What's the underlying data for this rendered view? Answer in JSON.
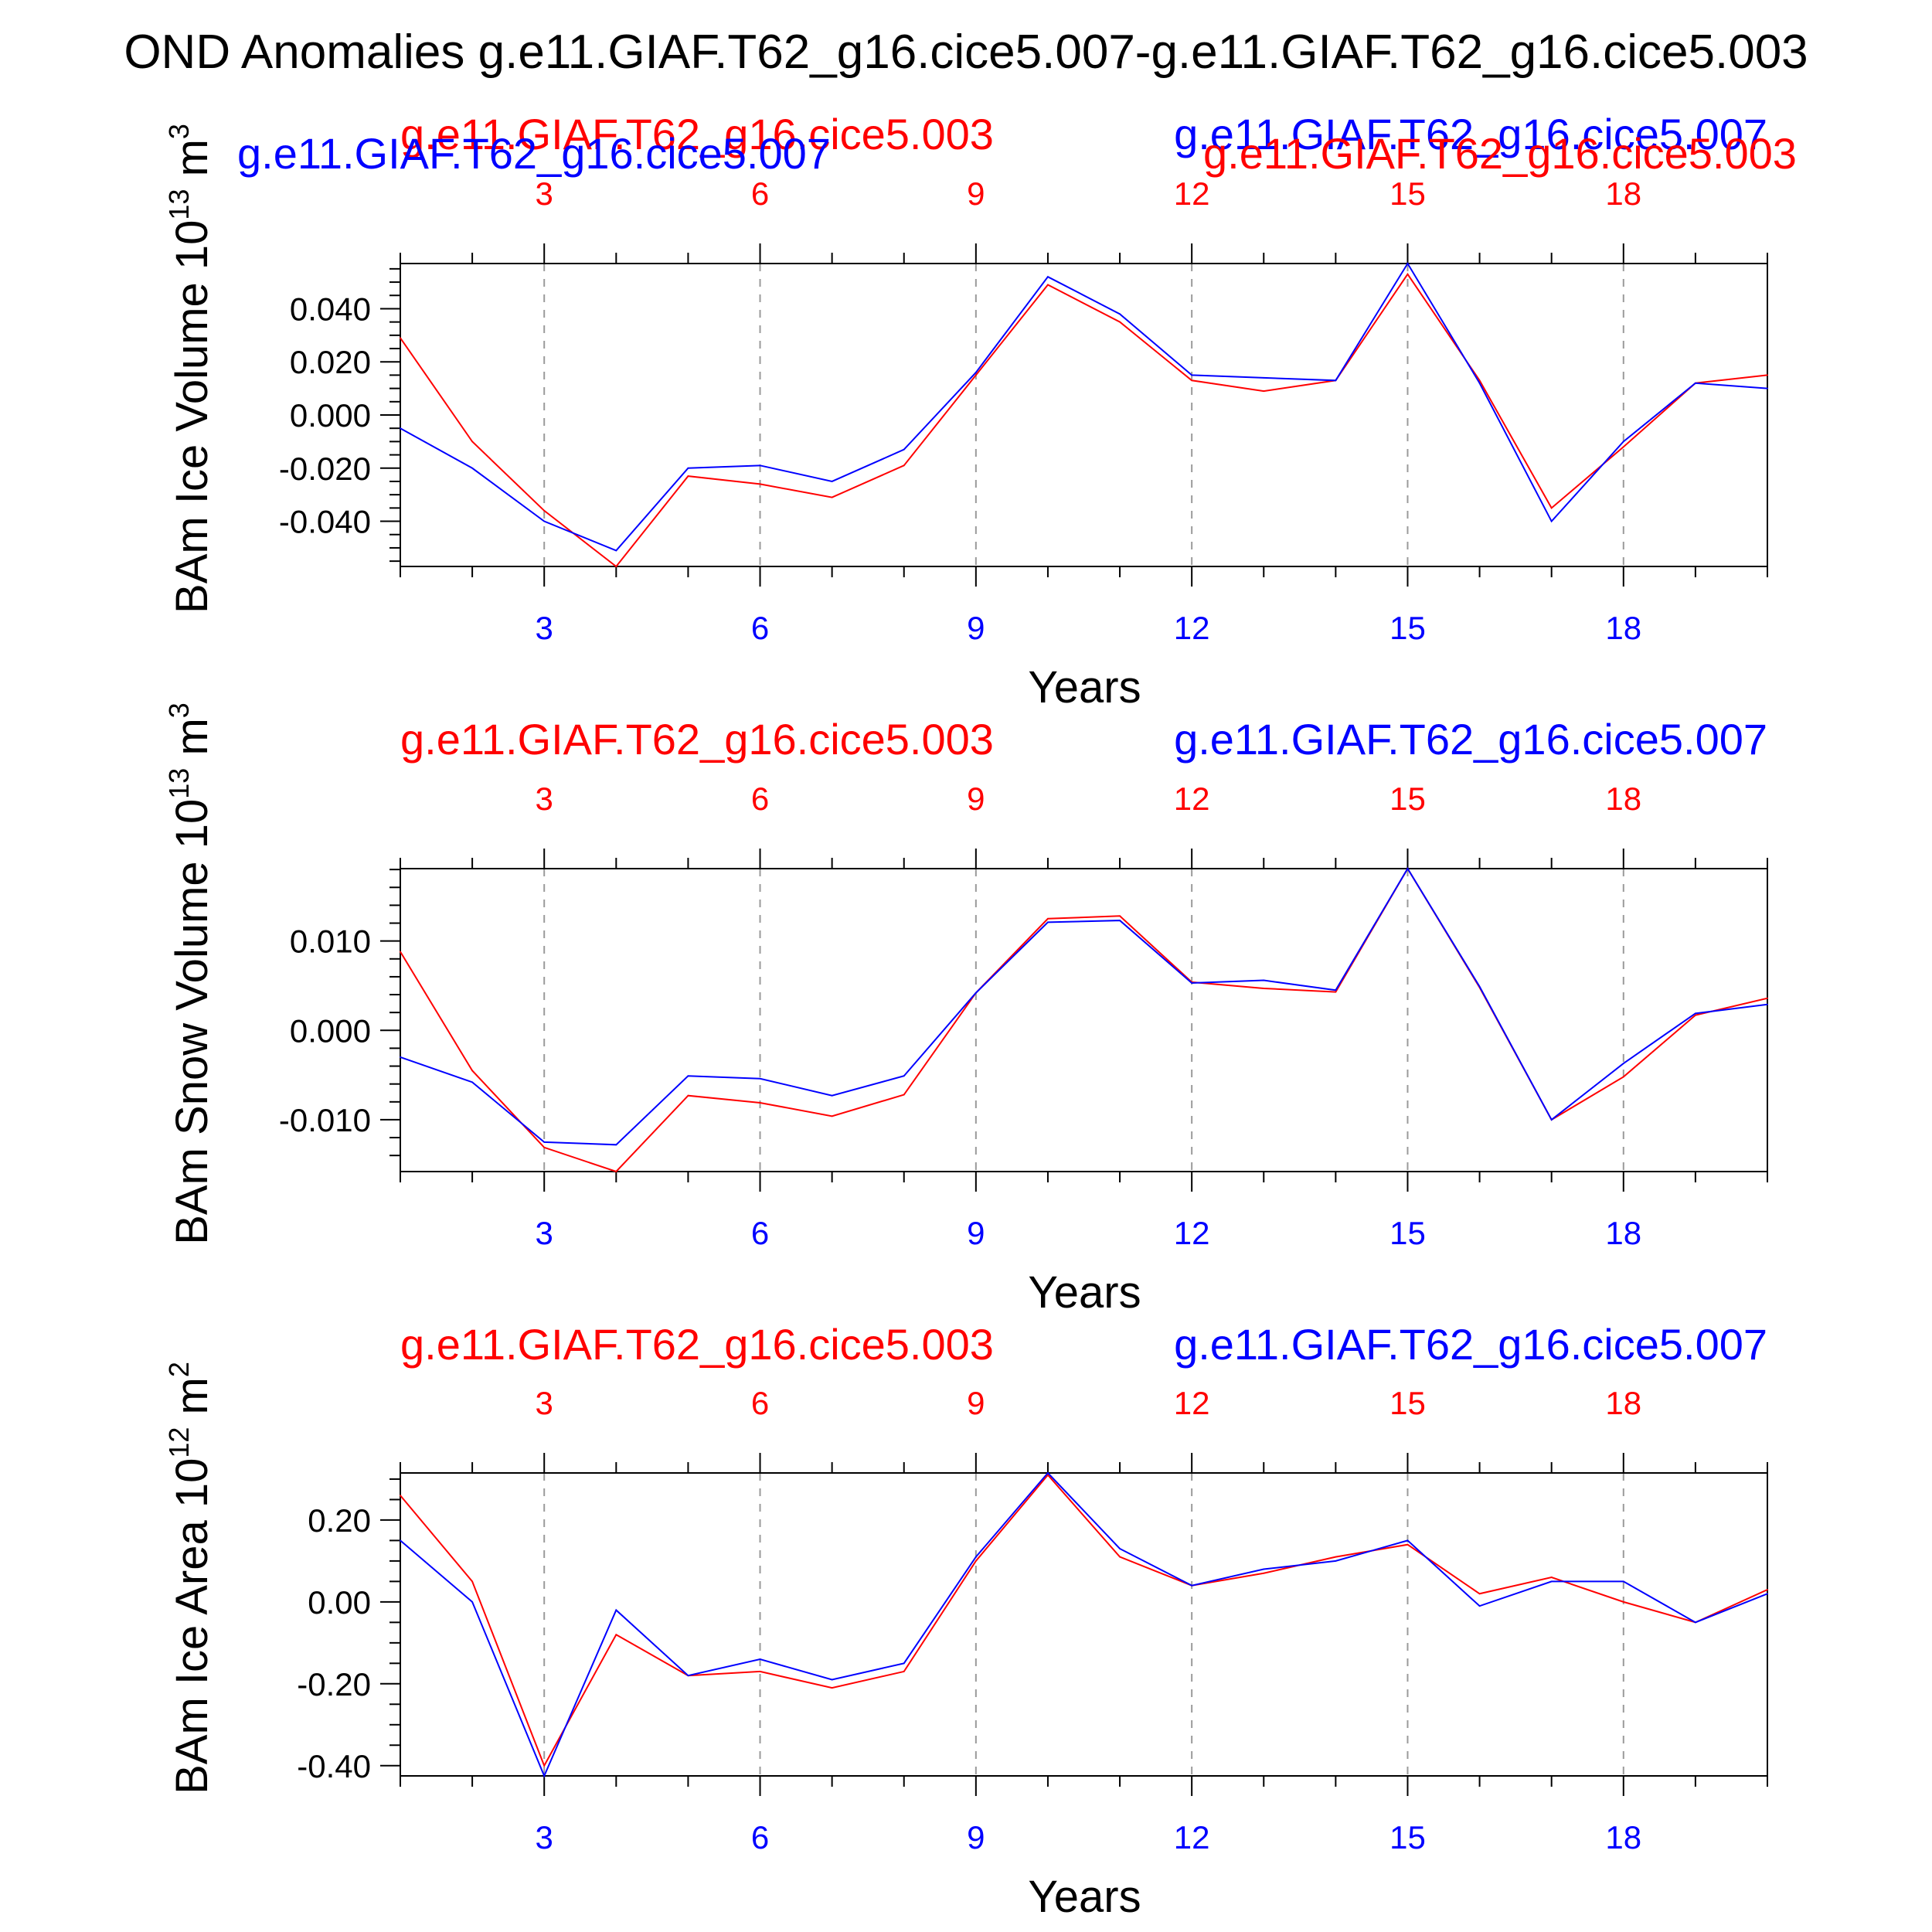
{
  "title": "OND Anomalies g.e11.GIAF.T62_g16.cice5.007-g.e11.GIAF.T62_g16.cice5.003",
  "colors": {
    "red": "#ff0000",
    "blue": "#0000ff",
    "axis": "#000000",
    "grid": "#9a9a9a"
  },
  "chart_data": [
    {
      "type": "line",
      "ylabel": "BAm Ice Volume 10",
      "ylabel_exp": "13",
      "ylabel_unit": " m",
      "ylabel_unit_exp": "3",
      "xlabel": "Years",
      "xlim": [
        1,
        20
      ],
      "ylim": [
        -0.057,
        0.057
      ],
      "xticks": [
        3,
        6,
        9,
        12,
        15,
        18
      ],
      "xtick_labels": [
        "3",
        "6",
        "9",
        "12",
        "15",
        "18"
      ],
      "yticks": [
        -0.04,
        -0.02,
        0.0,
        0.02,
        0.04
      ],
      "ytick_labels": [
        "-0.040",
        "-0.020",
        "0.000",
        "0.020",
        "0.040"
      ],
      "y_minor_step": 0.005,
      "x": [
        1,
        2,
        3,
        4,
        5,
        6,
        7,
        8,
        9,
        10,
        11,
        12,
        13,
        14,
        15,
        16,
        17,
        18,
        19,
        20
      ],
      "series": [
        {
          "name": "g.e11.GIAF.T62_g16.cice5.003",
          "color": "red",
          "values": [
            0.029,
            -0.01,
            -0.036,
            -0.057,
            -0.023,
            -0.026,
            -0.031,
            -0.019,
            0.015,
            0.049,
            0.035,
            0.013,
            0.009,
            0.013,
            0.053,
            0.013,
            -0.035,
            -0.012,
            0.012,
            0.015
          ]
        },
        {
          "name": "g.e11.GIAF.T62_g16.cice5.007",
          "color": "blue",
          "values": [
            -0.005,
            -0.02,
            -0.04,
            -0.051,
            -0.02,
            -0.019,
            -0.025,
            -0.013,
            0.016,
            0.052,
            0.038,
            0.015,
            0.014,
            0.013,
            0.057,
            0.012,
            -0.04,
            -0.01,
            0.012,
            0.01
          ]
        }
      ],
      "top_labels": [
        {
          "text": "g.e11.GIAF.T62_g16.cice5.003",
          "color": "red"
        },
        {
          "text": "g.e11.GIAF.T62_g16.cice5.007",
          "color": "blue"
        },
        {
          "text": "g.e11.GIAF.T62_g16.cice5.007",
          "color": "blue"
        },
        {
          "text": "g.e11.GIAF.T62_g16.cice5.003",
          "color": "red"
        }
      ]
    },
    {
      "type": "line",
      "ylabel": "BAm Snow Volume 10",
      "ylabel_exp": "13",
      "ylabel_unit": " m",
      "ylabel_unit_exp": "3",
      "xlabel": "Years",
      "xlim": [
        1,
        20
      ],
      "ylim": [
        -0.0158,
        0.0181
      ],
      "xticks": [
        3,
        6,
        9,
        12,
        15,
        18
      ],
      "xtick_labels": [
        "3",
        "6",
        "9",
        "12",
        "15",
        "18"
      ],
      "yticks": [
        -0.01,
        0.0,
        0.01
      ],
      "ytick_labels": [
        "-0.010",
        "0.000",
        "0.010"
      ],
      "y_minor_step": 0.002,
      "x": [
        1,
        2,
        3,
        4,
        5,
        6,
        7,
        8,
        9,
        10,
        11,
        12,
        13,
        14,
        15,
        16,
        17,
        18,
        19,
        20
      ],
      "series": [
        {
          "name": "g.e11.GIAF.T62_g16.cice5.003",
          "color": "red",
          "values": [
            0.0088,
            -0.0045,
            -0.0131,
            -0.0158,
            -0.0073,
            -0.0081,
            -0.0096,
            -0.0072,
            0.0042,
            0.0125,
            0.0128,
            0.0054,
            0.0047,
            0.0043,
            0.0181,
            0.0048,
            -0.01,
            -0.0052,
            0.0017,
            0.0036
          ]
        },
        {
          "name": "g.e11.GIAF.T62_g16.cice5.007",
          "color": "blue",
          "values": [
            -0.003,
            -0.0058,
            -0.0125,
            -0.0128,
            -0.0051,
            -0.0054,
            -0.0073,
            -0.0051,
            0.0042,
            0.0121,
            0.0123,
            0.0053,
            0.0056,
            0.0045,
            0.0181,
            0.0049,
            -0.01,
            -0.0037,
            0.0019,
            0.0029
          ]
        }
      ],
      "top_labels": [
        {
          "text": "g.e11.GIAF.T62_g16.cice5.003",
          "color": "red"
        },
        {
          "text": "g.e11.GIAF.T62_g16.cice5.007",
          "color": "blue"
        }
      ]
    },
    {
      "type": "line",
      "ylabel": "BAm Ice Area 10",
      "ylabel_exp": "12",
      "ylabel_unit": " m",
      "ylabel_unit_exp": "2",
      "xlabel": "Years",
      "xlim": [
        1,
        20
      ],
      "ylim": [
        -0.425,
        0.315
      ],
      "xticks": [
        3,
        6,
        9,
        12,
        15,
        18
      ],
      "xtick_labels": [
        "3",
        "6",
        "9",
        "12",
        "15",
        "18"
      ],
      "yticks": [
        -0.4,
        -0.2,
        0.0,
        0.2
      ],
      "ytick_labels": [
        "-0.40",
        "-0.20",
        "0.00",
        "0.20"
      ],
      "y_minor_step": 0.05,
      "x": [
        1,
        2,
        3,
        4,
        5,
        6,
        7,
        8,
        9,
        10,
        11,
        12,
        13,
        14,
        15,
        16,
        17,
        18,
        19,
        20
      ],
      "series": [
        {
          "name": "g.e11.GIAF.T62_g16.cice5.003",
          "color": "red",
          "values": [
            0.26,
            0.05,
            -0.4,
            -0.08,
            -0.18,
            -0.17,
            -0.21,
            -0.17,
            0.1,
            0.31,
            0.11,
            0.04,
            0.07,
            0.11,
            0.14,
            0.02,
            0.06,
            0.0,
            -0.05,
            0.03
          ]
        },
        {
          "name": "g.e11.GIAF.T62_g16.cice5.007",
          "color": "blue",
          "values": [
            0.15,
            0.0,
            -0.425,
            -0.02,
            -0.18,
            -0.14,
            -0.19,
            -0.15,
            0.11,
            0.315,
            0.13,
            0.04,
            0.08,
            0.1,
            0.15,
            -0.01,
            0.05,
            0.05,
            -0.05,
            0.02
          ]
        }
      ],
      "top_labels": [
        {
          "text": "g.e11.GIAF.T62_g16.cice5.003",
          "color": "red"
        },
        {
          "text": "g.e11.GIAF.T62_g16.cice5.007",
          "color": "blue"
        }
      ]
    }
  ]
}
